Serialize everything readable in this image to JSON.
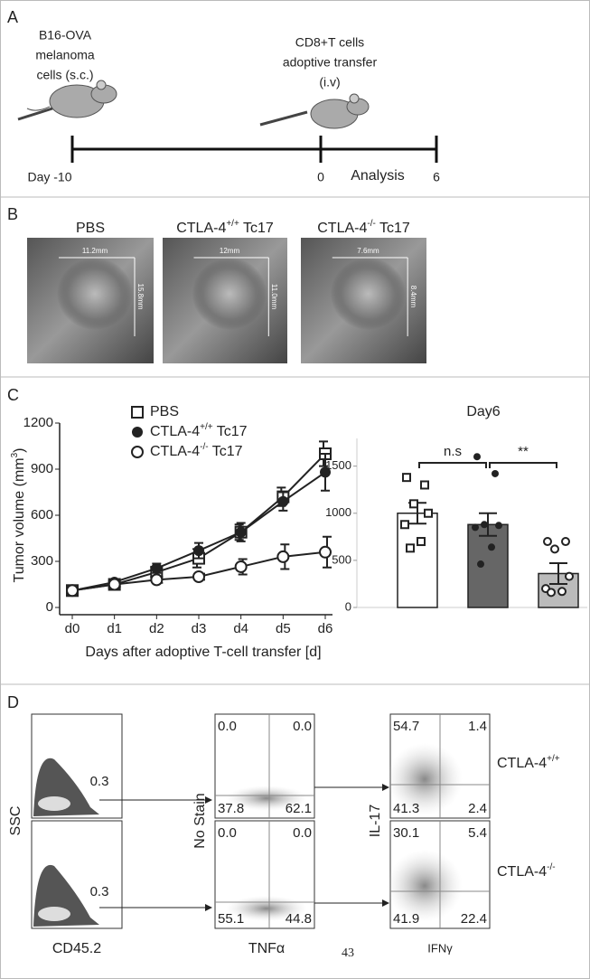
{
  "panel_a": {
    "label": "A",
    "injection_1": [
      "B16-OVA",
      "melanoma",
      "cells (s.c.)"
    ],
    "injection_2": [
      "CD8+T cells",
      "adoptive transfer",
      "(i.v)"
    ],
    "timeline": {
      "start": "Day -10",
      "transfer": "0",
      "analysis": "Analysis",
      "end": "6"
    }
  },
  "panel_b": {
    "label": "B",
    "images": [
      {
        "title": "PBS",
        "width": "11.2mm",
        "height": "15.8mm"
      },
      {
        "title": "CTLA-4",
        "title_sup": "+/+",
        "title_after": " Tc17",
        "width": "12mm",
        "height": "11.0mm"
      },
      {
        "title": "CTLA-4",
        "title_sup": "-/-",
        "title_after": " Tc17",
        "width": "7.6mm",
        "height": "8.4mm"
      }
    ]
  },
  "panel_c": {
    "label": "C"
  },
  "chart_data": [
    {
      "type": "line",
      "ylabel": "Tumor volume (mm",
      "ylabel_sup": "3",
      "ylabel_after": ")",
      "xlabel": "Days after adoptive T-cell transfer [d]",
      "categories": [
        "d0",
        "d1",
        "d2",
        "d3",
        "d4",
        "d5",
        "d6"
      ],
      "ylim": [
        0,
        1200
      ],
      "yticks": [
        0,
        300,
        600,
        900,
        1200
      ],
      "series": [
        {
          "name": "PBS",
          "marker": "square-open",
          "color": "#222222",
          "values": [
            110,
            150,
            230,
            320,
            490,
            720,
            1000
          ],
          "errors": [
            20,
            20,
            30,
            60,
            50,
            60,
            80
          ]
        },
        {
          "name": "CTLA-4",
          "name_sup": "+/+",
          "name_after": " Tc17",
          "marker": "circle-filled",
          "color": "#222222",
          "values": [
            110,
            165,
            255,
            370,
            490,
            690,
            880
          ],
          "errors": [
            15,
            20,
            30,
            50,
            60,
            60,
            120
          ]
        },
        {
          "name": "CTLA-4",
          "name_sup": "-/-",
          "name_after": " Tc17",
          "marker": "circle-open",
          "color": "#222222",
          "values": [
            110,
            150,
            180,
            200,
            265,
            330,
            360
          ],
          "errors": [
            15,
            15,
            20,
            20,
            50,
            80,
            100
          ]
        }
      ]
    },
    {
      "type": "bar",
      "title": "Day6",
      "categories": [
        null,
        null,
        null
      ],
      "values": [
        1000,
        880,
        360
      ],
      "errors": [
        110,
        120,
        110
      ],
      "colors": [
        "#ffffff",
        "#666666",
        "#bbbbbb"
      ],
      "point_markers": [
        "square-open",
        "circle-filled",
        "circle-open"
      ],
      "points": [
        [
          1380,
          1300,
          1100,
          1000,
          880,
          700,
          630
        ],
        [
          1600,
          1420,
          880,
          870,
          850,
          640,
          460
        ],
        [
          700,
          700,
          620,
          330,
          200,
          170,
          160
        ]
      ],
      "ylim": [
        0,
        1650
      ],
      "yticks": [
        0,
        500,
        1000,
        1500
      ],
      "annotations": [
        "n.s",
        "**"
      ]
    }
  ],
  "panel_d": {
    "label": "D",
    "gate_plot": {
      "ylabel": "SSC",
      "xlabel": "CD45.2",
      "gates": [
        "0.3",
        "0.3"
      ]
    },
    "tnf_plot": {
      "ylabel": "No Stain",
      "xlabel": "TNFα",
      "quadrants": [
        [
          "0.0",
          "0.0",
          "37.8",
          "62.1"
        ],
        [
          "0.0",
          "0.0",
          "55.1",
          "44.8"
        ]
      ]
    },
    "il17_plot": {
      "ylabel": "IL-17",
      "xlabel": "IFNγ",
      "quadrants": [
        [
          "54.7",
          "1.4",
          "41.3",
          "2.4"
        ],
        [
          "30.1",
          "5.4",
          "41.9",
          "22.4"
        ]
      ]
    },
    "rows": [
      {
        "text": "CTLA-4",
        "sup": "+/+"
      },
      {
        "text": "CTLA-4",
        "sup": "-/-"
      }
    ]
  },
  "page_number": "43"
}
